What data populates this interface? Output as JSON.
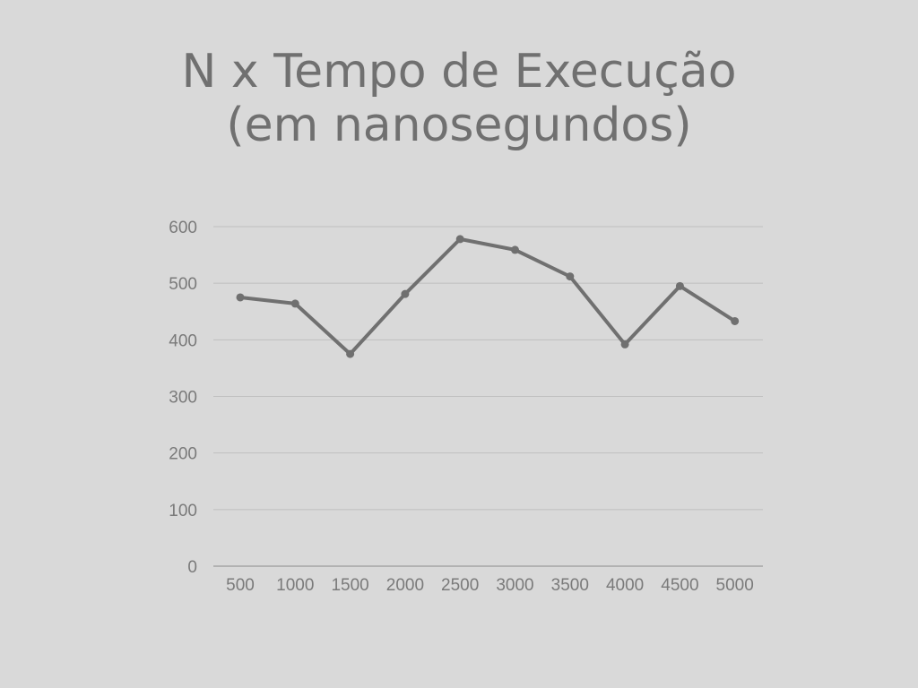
{
  "chart_data": {
    "type": "line",
    "title_line1": "N x Tempo de Execução",
    "title_line2": "(em nanosegundos)",
    "xlabel": "",
    "ylabel": "",
    "categories": [
      "500",
      "1000",
      "1500",
      "2000",
      "2500",
      "3000",
      "3500",
      "4000",
      "4500",
      "5000"
    ],
    "series": [
      {
        "values": [
          475,
          464,
          375,
          481,
          578,
          559,
          512,
          392,
          495,
          433
        ]
      }
    ],
    "ylim": [
      0,
      600
    ],
    "yticks": [
      "0",
      "100",
      "200",
      "300",
      "400",
      "500",
      "600"
    ],
    "grid": true,
    "line_color": "#707070",
    "grid_color": "#bfbfbf",
    "background": "#d9d9d9"
  }
}
